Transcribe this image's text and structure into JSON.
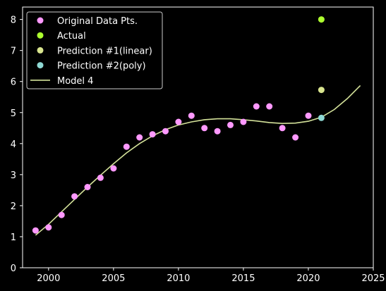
{
  "chart_data": {
    "type": "scatter",
    "xlim": [
      1998,
      2025
    ],
    "ylim": [
      0,
      8.4
    ],
    "xticks": [
      2000,
      2005,
      2010,
      2015,
      2020,
      2025
    ],
    "yticks": [
      0,
      1,
      2,
      3,
      4,
      5,
      6,
      7,
      8
    ],
    "grid": false,
    "legend_position": "upper-left",
    "background": "#000000",
    "series": [
      {
        "name": "Original Data Pts.",
        "kind": "scatter",
        "color": "#ff99ff",
        "x": [
          1999,
          2000,
          2001,
          2002,
          2003,
          2004,
          2005,
          2006,
          2007,
          2008,
          2009,
          2010,
          2011,
          2012,
          2013,
          2014,
          2015,
          2016,
          2017,
          2018,
          2019,
          2020
        ],
        "y": [
          1.2,
          1.3,
          1.7,
          2.3,
          2.6,
          2.9,
          3.2,
          3.9,
          4.2,
          4.3,
          4.4,
          4.7,
          4.9,
          4.5,
          4.4,
          4.6,
          4.7,
          5.2,
          5.2,
          4.5,
          4.2,
          4.9
        ]
      },
      {
        "name": "Actual",
        "kind": "scatter",
        "color": "#adff2f",
        "x": [
          2021
        ],
        "y": [
          8.0
        ]
      },
      {
        "name": "Prediction #1(linear)",
        "kind": "scatter",
        "color": "#d9e58f",
        "x": [
          2021
        ],
        "y": [
          5.73
        ]
      },
      {
        "name": "Prediction #2(poly)",
        "kind": "scatter",
        "color": "#8fd9d4",
        "x": [
          2021
        ],
        "y": [
          4.83
        ]
      },
      {
        "name": "Model 4",
        "kind": "line",
        "color": "#d4e29a",
        "x": [
          1999,
          2000,
          2001,
          2002,
          2003,
          2004,
          2005,
          2006,
          2007,
          2008,
          2009,
          2010,
          2011,
          2012,
          2013,
          2014,
          2015,
          2016,
          2017,
          2018,
          2019,
          2020,
          2021,
          2022,
          2023,
          2024
        ],
        "y": [
          1.05,
          1.4,
          1.8,
          2.2,
          2.6,
          2.98,
          3.35,
          3.7,
          4.0,
          4.25,
          4.45,
          4.6,
          4.7,
          4.77,
          4.8,
          4.8,
          4.77,
          4.73,
          4.68,
          4.65,
          4.66,
          4.72,
          4.85,
          5.1,
          5.45,
          5.87
        ]
      }
    ]
  }
}
